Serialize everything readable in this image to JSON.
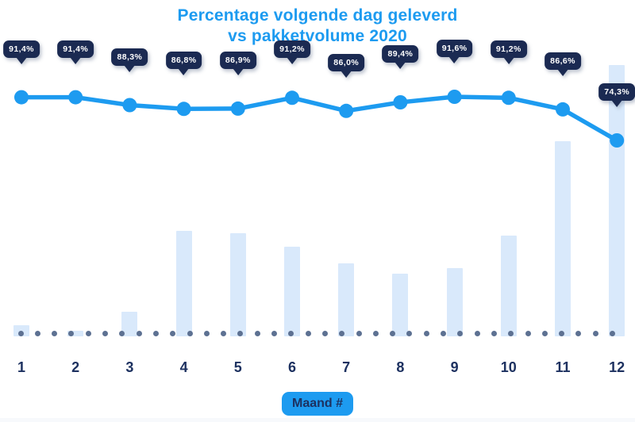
{
  "title": {
    "line1": "Percentage volgende dag geleverd",
    "line2": "vs pakketvolume 2020"
  },
  "x_axis": {
    "label": "Maand #"
  },
  "chart_data": {
    "type": "combo",
    "title": "Percentage volgende dag geleverd vs pakketvolume 2020",
    "xlabel": "Maand #",
    "ylabel": "",
    "categories": [
      "1",
      "2",
      "3",
      "4",
      "5",
      "6",
      "7",
      "8",
      "9",
      "10",
      "11",
      "12"
    ],
    "series": [
      {
        "name": "Percentage volgende dag geleverd",
        "type": "line",
        "unit": "%",
        "values": [
          91.4,
          91.4,
          88.3,
          86.8,
          86.9,
          91.2,
          86.0,
          89.4,
          91.6,
          91.2,
          86.6,
          74.3
        ],
        "point_labels": [
          "91,4%",
          "91,4%",
          "88,3%",
          "86,8%",
          "86,9%",
          "91,2%",
          "86,0%",
          "89,4%",
          "91,6%",
          "91,2%",
          "86,6%",
          "74,3%"
        ]
      },
      {
        "name": "Pakketvolume 2020",
        "type": "bar",
        "scale_note": "no numeric axis shown; values are relative bar heights as % of December maximum",
        "values": [
          4,
          2,
          9,
          39,
          38,
          33,
          27,
          23,
          25,
          37,
          72,
          100
        ]
      }
    ],
    "legend": "none",
    "grid": "off",
    "y_axis_ticks": "none",
    "baseline_style": "dotted"
  },
  "colors": {
    "accent_blue": "#1d9bf0",
    "line_blue": "#1d9bf0",
    "badge_navy": "#1b2a52",
    "text_navy": "#1d3160",
    "bar_fill": "#d9e9fb",
    "baseline_dot": "#5d7192",
    "background": "#ffffff",
    "footer_strip": "#f7f9fc"
  }
}
